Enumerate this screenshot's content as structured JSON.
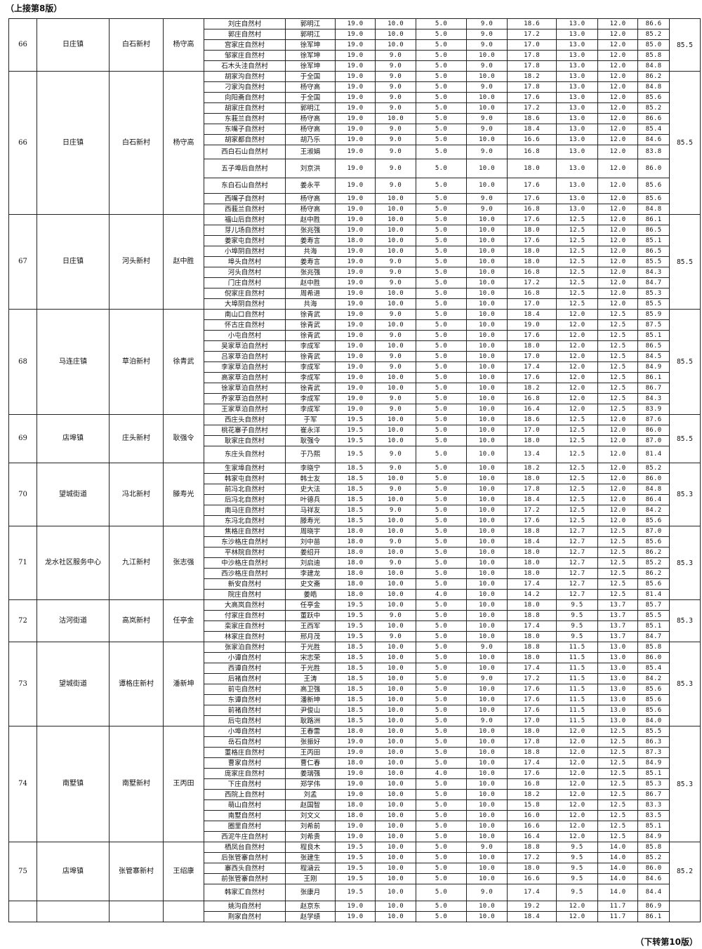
{
  "header_note": "（上接第8版）",
  "footer_note": "（下转第10版）",
  "groups": [
    {
      "rank": "66",
      "town": "日庄镇",
      "village": "白石新村",
      "leader": "杨守高",
      "total": "85.5",
      "rows": [
        [
          "刘庄自然村",
          "郭明江",
          "19.0",
          "10.0",
          "5.0",
          "9.0",
          "18.6",
          "13.0",
          "12.0",
          "86.6"
        ],
        [
          "郭庄自然村",
          "郭明江",
          "19.0",
          "10.0",
          "5.0",
          "9.0",
          "17.2",
          "13.0",
          "12.0",
          "85.2"
        ],
        [
          "宫家庄自然村",
          "徐军坤",
          "19.0",
          "10.0",
          "5.0",
          "9.0",
          "17.0",
          "13.0",
          "12.0",
          "85.0"
        ],
        [
          "邹家庄自然村",
          "徐军坤",
          "19.0",
          "9.0",
          "5.0",
          "10.0",
          "17.8",
          "13.0",
          "12.0",
          "85.8"
        ],
        [
          "石木头洼自然村",
          "徐军坤",
          "19.0",
          "9.0",
          "5.0",
          "9.0",
          "17.8",
          "13.0",
          "12.0",
          "84.8"
        ]
      ]
    },
    {
      "rank": "66",
      "town": "日庄镇",
      "village": "白石新村",
      "leader": "杨守高",
      "total": "85.5",
      "rows": [
        [
          "胡家沟自然村",
          "于全国",
          "19.0",
          "9.0",
          "5.0",
          "10.0",
          "18.2",
          "13.0",
          "12.0",
          "86.2"
        ],
        [
          "刁家沟自然村",
          "杨守高",
          "19.0",
          "9.0",
          "5.0",
          "9.0",
          "17.8",
          "13.0",
          "12.0",
          "84.8"
        ],
        [
          "向阳斋自然村",
          "于全国",
          "19.0",
          "9.0",
          "5.0",
          "10.0",
          "17.6",
          "13.0",
          "12.0",
          "85.6"
        ],
        [
          "胡家庄自然村",
          "郭明江",
          "19.0",
          "9.0",
          "5.0",
          "10.0",
          "17.2",
          "13.0",
          "12.0",
          "85.2"
        ],
        [
          "东莪兰自然村",
          "杨守高",
          "19.0",
          "10.0",
          "5.0",
          "9.0",
          "18.6",
          "13.0",
          "12.0",
          "86.6"
        ],
        [
          "东嘴子自然村",
          "杨守高",
          "19.0",
          "9.0",
          "5.0",
          "9.0",
          "18.4",
          "13.0",
          "12.0",
          "85.4"
        ],
        [
          "胡家都自然村",
          "胡乃乐",
          "19.0",
          "9.0",
          "5.0",
          "10.0",
          "16.6",
          "13.0",
          "12.0",
          "84.6"
        ],
        [
          "西白石山自然村",
          "王淑娟",
          "19.0",
          "9.0",
          "5.0",
          "9.0",
          "16.8",
          "13.0",
          "12.0",
          "83.8"
        ],
        [
          "五子埠后自然村",
          "刘京洪",
          "19.0",
          "9.0",
          "5.0",
          "10.0",
          "18.0",
          "13.0",
          "12.0",
          "86.0"
        ],
        [
          "东白石山自然村",
          "姜永平",
          "19.0",
          "9.0",
          "5.0",
          "10.0",
          "17.6",
          "13.0",
          "12.0",
          "85.6"
        ],
        [
          "西嘴子自然村",
          "杨守高",
          "19.0",
          "10.0",
          "5.0",
          "9.0",
          "17.6",
          "13.0",
          "12.0",
          "85.6"
        ],
        [
          "西莪兰自然村",
          "杨守高",
          "19.0",
          "10.0",
          "5.0",
          "9.0",
          "16.8",
          "13.0",
          "12.0",
          "84.8"
        ]
      ]
    },
    {
      "rank": "67",
      "town": "日庄镇",
      "village": "河头新村",
      "leader": "赵中胜",
      "total": "85.5",
      "rows": [
        [
          "福山后自然村",
          "赵中胜",
          "19.0",
          "10.0",
          "5.0",
          "10.0",
          "17.6",
          "12.5",
          "12.0",
          "86.1"
        ],
        [
          "芽儿场自然村",
          "张兆强",
          "19.0",
          "10.0",
          "5.0",
          "10.0",
          "18.0",
          "12.5",
          "12.0",
          "86.5"
        ],
        [
          "姜家屯自然村",
          "姜寿言",
          "18.0",
          "10.0",
          "5.0",
          "10.0",
          "17.6",
          "12.5",
          "12.0",
          "85.1"
        ],
        [
          "小埠阴自然村",
          "共海",
          "19.0",
          "10.0",
          "5.0",
          "10.0",
          "18.0",
          "12.5",
          "12.0",
          "86.5"
        ],
        [
          "埠头自然村",
          "姜寿言",
          "19.0",
          "9.0",
          "5.0",
          "10.0",
          "18.0",
          "12.5",
          "12.0",
          "85.5"
        ],
        [
          "河头自然村",
          "张兆强",
          "19.0",
          "9.0",
          "5.0",
          "10.0",
          "16.8",
          "12.5",
          "12.0",
          "84.3"
        ],
        [
          "门庄自然村",
          "赵中胜",
          "19.0",
          "9.0",
          "5.0",
          "10.0",
          "17.2",
          "12.5",
          "12.0",
          "84.7"
        ],
        [
          "倪家庄自然村",
          "周希进",
          "19.0",
          "10.0",
          "5.0",
          "10.0",
          "16.8",
          "12.5",
          "12.0",
          "85.3"
        ],
        [
          "大埠阴自然村",
          "共海",
          "19.0",
          "10.0",
          "5.0",
          "10.0",
          "17.0",
          "12.5",
          "12.0",
          "85.5"
        ]
      ]
    },
    {
      "rank": "68",
      "town": "马连庄镇",
      "village": "草泊新村",
      "leader": "徐青武",
      "total": "85.5",
      "rows": [
        [
          "南山口自然村",
          "徐青武",
          "19.0",
          "9.0",
          "5.0",
          "10.0",
          "18.4",
          "12.0",
          "12.5",
          "85.9"
        ],
        [
          "怀古庄自然村",
          "徐青武",
          "19.0",
          "10.0",
          "5.0",
          "10.0",
          "19.0",
          "12.0",
          "12.5",
          "87.5"
        ],
        [
          "小屯自然村",
          "徐青武",
          "19.0",
          "9.0",
          "5.0",
          "10.0",
          "17.6",
          "12.0",
          "12.5",
          "85.1"
        ],
        [
          "吴家草泊自然村",
          "李成军",
          "19.0",
          "10.0",
          "5.0",
          "10.0",
          "18.0",
          "12.0",
          "12.5",
          "86.5"
        ],
        [
          "吕家草泊自然村",
          "徐青武",
          "19.0",
          "9.0",
          "5.0",
          "10.0",
          "17.0",
          "12.0",
          "12.5",
          "84.5"
        ],
        [
          "李家草泊自然村",
          "李成军",
          "19.0",
          "9.0",
          "5.0",
          "10.0",
          "17.4",
          "12.0",
          "12.5",
          "84.9"
        ],
        [
          "高家草泊自然村",
          "李成军",
          "19.0",
          "10.0",
          "5.0",
          "10.0",
          "17.6",
          "12.0",
          "12.5",
          "86.1"
        ],
        [
          "徐家草泊自然村",
          "徐青武",
          "19.0",
          "10.0",
          "5.0",
          "10.0",
          "18.2",
          "12.0",
          "12.5",
          "86.7"
        ],
        [
          "乔家草泊自然村",
          "李成军",
          "19.0",
          "9.0",
          "5.0",
          "10.0",
          "16.8",
          "12.0",
          "12.5",
          "84.3"
        ],
        [
          "王家草泊自然村",
          "李成军",
          "19.0",
          "9.0",
          "5.0",
          "10.0",
          "16.4",
          "12.0",
          "12.5",
          "83.9"
        ]
      ]
    },
    {
      "rank": "69",
      "town": "店埠镇",
      "village": "庄头新村",
      "leader": "耿强令",
      "total": "85.5",
      "rows": [
        [
          "西庄头自然村",
          "于军",
          "19.5",
          "10.0",
          "5.0",
          "10.0",
          "18.6",
          "12.5",
          "12.0",
          "87.6"
        ],
        [
          "桃花寨子自然村",
          "崔永洋",
          "19.5",
          "10.0",
          "5.0",
          "10.0",
          "17.0",
          "12.5",
          "12.0",
          "86.0"
        ],
        [
          "耿家庄自然村",
          "耿强令",
          "19.5",
          "10.0",
          "5.0",
          "10.0",
          "18.0",
          "12.5",
          "12.0",
          "87.0"
        ],
        [
          "东庄头自然村",
          "于乃熙",
          "19.5",
          "9.0",
          "5.0",
          "10.0",
          "13.4",
          "12.5",
          "12.0",
          "81.4"
        ]
      ]
    },
    {
      "rank": "70",
      "town": "望城街道",
      "village": "冯北新村",
      "leader": "滕寿光",
      "total": "85.3",
      "rows": [
        [
          "生家埠自然村",
          "李晓宁",
          "18.5",
          "9.0",
          "5.0",
          "10.0",
          "18.2",
          "12.5",
          "12.0",
          "85.2"
        ],
        [
          "韩家屯自然村",
          "韩士友",
          "18.5",
          "10.0",
          "5.0",
          "10.0",
          "18.0",
          "12.5",
          "12.0",
          "86.0"
        ],
        [
          "前冯北自然村",
          "史大法",
          "18.5",
          "9.0",
          "5.0",
          "10.0",
          "17.8",
          "12.5",
          "12.0",
          "84.8"
        ],
        [
          "后冯北自然村",
          "叶德兵",
          "18.5",
          "10.0",
          "5.0",
          "10.0",
          "18.4",
          "12.5",
          "12.0",
          "86.4"
        ],
        [
          "南马庄自然村",
          "马祥友",
          "18.5",
          "9.0",
          "5.0",
          "10.0",
          "17.2",
          "12.5",
          "12.0",
          "84.2"
        ],
        [
          "东冯北自然村",
          "滕寿光",
          "18.5",
          "10.0",
          "5.0",
          "10.0",
          "17.6",
          "12.5",
          "12.0",
          "85.6"
        ]
      ]
    },
    {
      "rank": "71",
      "town": "龙水社区服务中心",
      "village": "九江新村",
      "leader": "张志强",
      "total": "85.3",
      "rows": [
        [
          "焦格庄自然村",
          "周晓宇",
          "18.0",
          "10.0",
          "5.0",
          "10.0",
          "18.8",
          "12.7",
          "12.5",
          "87.0"
        ],
        [
          "东沙格庄自然村",
          "刘中苗",
          "18.0",
          "9.0",
          "5.0",
          "10.0",
          "18.4",
          "12.7",
          "12.5",
          "85.6"
        ],
        [
          "平林院自然村",
          "姜绍开",
          "18.0",
          "10.0",
          "5.0",
          "10.0",
          "18.0",
          "12.7",
          "12.5",
          "86.2"
        ],
        [
          "中沙格庄自然村",
          "刘启迪",
          "18.0",
          "9.0",
          "5.0",
          "10.0",
          "18.0",
          "12.7",
          "12.5",
          "85.2"
        ],
        [
          "西沙格庄自然村",
          "李建龙",
          "18.0",
          "10.0",
          "5.0",
          "10.0",
          "18.0",
          "12.7",
          "12.5",
          "86.2"
        ],
        [
          "新安自然村",
          "史文斋",
          "18.0",
          "10.0",
          "5.0",
          "10.0",
          "17.4",
          "12.7",
          "12.5",
          "85.6"
        ],
        [
          "院庄自然村",
          "姜皓",
          "18.0",
          "10.0",
          "4.0",
          "10.0",
          "14.2",
          "12.7",
          "12.5",
          "81.4"
        ]
      ]
    },
    {
      "rank": "72",
      "town": "沽河街道",
      "village": "高岚新村",
      "leader": "任亭金",
      "total": "85.3",
      "rows": [
        [
          "大高岚自然村",
          "任亭金",
          "19.5",
          "10.0",
          "5.0",
          "10.0",
          "18.0",
          "9.5",
          "13.7",
          "85.7"
        ],
        [
          "付家庄自然村",
          "董跃中",
          "19.5",
          "9.0",
          "5.0",
          "10.0",
          "18.8",
          "9.5",
          "13.7",
          "85.5"
        ],
        [
          "栾家庄自然村",
          "王西军",
          "19.5",
          "10.0",
          "5.0",
          "10.0",
          "17.4",
          "9.5",
          "13.7",
          "85.1"
        ],
        [
          "林家庄自然村",
          "邢月茂",
          "19.5",
          "9.0",
          "5.0",
          "10.0",
          "18.0",
          "9.5",
          "13.7",
          "84.7"
        ]
      ]
    },
    {
      "rank": "73",
      "town": "望城街道",
      "village": "谭格庄新村",
      "leader": "潘新坤",
      "total": "85.3",
      "rows": [
        [
          "张家泊自然村",
          "于光胜",
          "18.5",
          "10.0",
          "5.0",
          "9.0",
          "18.8",
          "11.5",
          "13.0",
          "85.8"
        ],
        [
          "小谭自然村",
          "宋志荣",
          "18.5",
          "10.0",
          "5.0",
          "10.0",
          "18.0",
          "11.5",
          "13.0",
          "86.0"
        ],
        [
          "西谭自然村",
          "于光胜",
          "18.5",
          "10.0",
          "5.0",
          "10.0",
          "17.4",
          "11.5",
          "13.0",
          "85.4"
        ],
        [
          "后褚自然村",
          "王涛",
          "18.5",
          "10.0",
          "5.0",
          "9.0",
          "17.2",
          "11.5",
          "13.0",
          "84.2"
        ],
        [
          "前屯自然村",
          "高卫强",
          "18.5",
          "10.0",
          "5.0",
          "10.0",
          "17.6",
          "11.5",
          "13.0",
          "85.6"
        ],
        [
          "东谭自然村",
          "潘新坤",
          "18.5",
          "10.0",
          "5.0",
          "10.0",
          "17.6",
          "11.5",
          "13.0",
          "85.6"
        ],
        [
          "前褚自然村",
          "尹俊山",
          "18.5",
          "10.0",
          "5.0",
          "10.0",
          "17.6",
          "11.5",
          "13.0",
          "85.6"
        ],
        [
          "后屯自然村",
          "耿路洲",
          "18.5",
          "10.0",
          "5.0",
          "9.0",
          "17.0",
          "11.5",
          "13.0",
          "84.0"
        ]
      ]
    },
    {
      "rank": "74",
      "town": "南墅镇",
      "village": "南墅新村",
      "leader": "王丙田",
      "total": "85.3",
      "rows": [
        [
          "小埠自然村",
          "王春雷",
          "18.0",
          "10.0",
          "5.0",
          "10.0",
          "18.0",
          "12.0",
          "12.5",
          "85.5"
        ],
        [
          "岳石自然村",
          "张振好",
          "19.0",
          "10.0",
          "5.0",
          "10.0",
          "17.8",
          "12.0",
          "12.5",
          "86.3"
        ],
        [
          "董格庄自然村",
          "王丙田",
          "19.0",
          "10.0",
          "5.0",
          "10.0",
          "18.8",
          "12.0",
          "12.5",
          "87.3"
        ],
        [
          "曹家自然村",
          "曹仁春",
          "18.0",
          "10.0",
          "5.0",
          "10.0",
          "17.4",
          "12.0",
          "12.5",
          "84.9"
        ],
        [
          "庞家庄自然村",
          "姜瑞强",
          "19.0",
          "10.0",
          "4.0",
          "10.0",
          "17.6",
          "12.0",
          "12.5",
          "85.1"
        ],
        [
          "下庄自然村",
          "郑学伟",
          "19.0",
          "10.0",
          "5.0",
          "10.0",
          "16.8",
          "12.0",
          "12.5",
          "85.3"
        ],
        [
          "西院上自然村",
          "刘孟",
          "19.0",
          "10.0",
          "5.0",
          "10.0",
          "18.2",
          "12.0",
          "12.5",
          "86.7"
        ],
        [
          "萌山自然村",
          "赵国智",
          "18.0",
          "10.0",
          "5.0",
          "10.0",
          "15.8",
          "12.0",
          "12.5",
          "83.3"
        ],
        [
          "南墅自然村",
          "刘文义",
          "18.0",
          "10.0",
          "5.0",
          "10.0",
          "16.0",
          "12.0",
          "12.5",
          "83.5"
        ],
        [
          "圈里自然村",
          "刘希前",
          "19.0",
          "10.0",
          "5.0",
          "10.0",
          "16.6",
          "12.0",
          "12.5",
          "85.1"
        ],
        [
          "西泥牛庄自然村",
          "刘希贵",
          "19.0",
          "10.0",
          "5.0",
          "10.0",
          "16.4",
          "12.0",
          "12.5",
          "84.9"
        ]
      ]
    },
    {
      "rank": "75",
      "town": "店埠镇",
      "village": "张管寨新村",
      "leader": "王绍康",
      "total": "85.2",
      "rows": [
        [
          "栖凤台自然村",
          "程良木",
          "19.5",
          "10.0",
          "5.0",
          "9.0",
          "18.8",
          "9.5",
          "14.0",
          "85.8"
        ],
        [
          "后张管寨自然村",
          "张建生",
          "19.5",
          "10.0",
          "5.0",
          "10.0",
          "17.2",
          "9.5",
          "14.0",
          "85.2"
        ],
        [
          "寨西头自然村",
          "程涵云",
          "19.5",
          "10.0",
          "5.0",
          "10.0",
          "18.0",
          "9.5",
          "14.0",
          "86.0"
        ],
        [
          "前张管寨自然村",
          "王刚",
          "19.5",
          "10.0",
          "5.0",
          "10.0",
          "16.6",
          "9.5",
          "14.0",
          "84.6"
        ],
        [
          "韩家汇自然村",
          "张康月",
          "19.5",
          "10.0",
          "5.0",
          "9.0",
          "17.4",
          "9.5",
          "14.0",
          "84.4"
        ]
      ]
    },
    {
      "rank": "",
      "town": "",
      "village": "",
      "leader": "",
      "total": "",
      "rows": [
        [
          "姚沟自然村",
          "赵京东",
          "19.0",
          "10.0",
          "5.0",
          "10.0",
          "19.2",
          "12.0",
          "11.7",
          "86.9"
        ],
        [
          "荆家自然村",
          "赵学绩",
          "19.0",
          "10.0",
          "5.0",
          "10.0",
          "18.4",
          "12.0",
          "11.7",
          "86.1"
        ]
      ]
    }
  ]
}
